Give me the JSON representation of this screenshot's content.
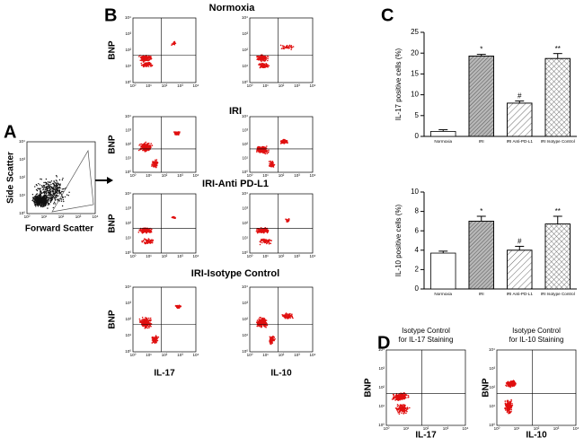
{
  "figure": {
    "panel_labels": [
      "A",
      "B",
      "C",
      "D"
    ],
    "panel_a": {
      "y_label": "Side Scatter",
      "x_label": "Forward Scatter"
    },
    "panel_b": {
      "row_titles": [
        "Normoxia",
        "IRI",
        "IRI-Anti PD-L1",
        "IRI-Isotype Control"
      ],
      "y_label": "BNP",
      "x_labels": [
        "IL-17",
        "IL-10"
      ]
    },
    "panel_d": {
      "titles": [
        [
          "Isotype Control",
          "for IL-17  Staining"
        ],
        [
          "Isotype Control",
          "for IL-10 Staining"
        ]
      ],
      "y_label": "BNP",
      "x_labels": [
        "IL-17",
        "IL-10"
      ]
    },
    "flow_ticks": [
      "10⁰",
      "10¹",
      "10²",
      "10³",
      "10⁴"
    ]
  },
  "chart_data": [
    {
      "type": "bar",
      "y_label": "IL-17 positive cells (%)",
      "categories": [
        "Normoxia",
        "IRI",
        "IRI Anti-PD-L1",
        "IRI Isotype Control"
      ],
      "values": [
        1.2,
        19.3,
        8.0,
        18.7
      ],
      "errors": [
        0.4,
        0.4,
        0.5,
        1.2
      ],
      "annotations": [
        null,
        "*",
        "#",
        "**"
      ],
      "colors": [
        "#ffffff",
        "#b8b8b8",
        "#ffffff",
        "#ffffff"
      ],
      "hatches": [
        null,
        "dense",
        "sparse",
        "cross"
      ],
      "ylim": [
        0,
        25
      ],
      "yticks": [
        0,
        5,
        10,
        15,
        20,
        25
      ]
    },
    {
      "type": "bar",
      "y_label": "IL-10 positive cells (%)",
      "categories": [
        "Normoxia",
        "IRI",
        "IRI Anti-PD-L1",
        "IRI Isotype Control"
      ],
      "values": [
        3.7,
        7.0,
        4.0,
        6.7
      ],
      "errors": [
        0.2,
        0.5,
        0.4,
        0.8
      ],
      "annotations": [
        null,
        "*",
        "#",
        "**"
      ],
      "colors": [
        "#ffffff",
        "#b8b8b8",
        "#ffffff",
        "#ffffff"
      ],
      "hatches": [
        null,
        "dense",
        "sparse",
        "cross"
      ],
      "ylim": [
        0,
        10
      ],
      "yticks": [
        0,
        2,
        4,
        6,
        8,
        10
      ]
    }
  ]
}
